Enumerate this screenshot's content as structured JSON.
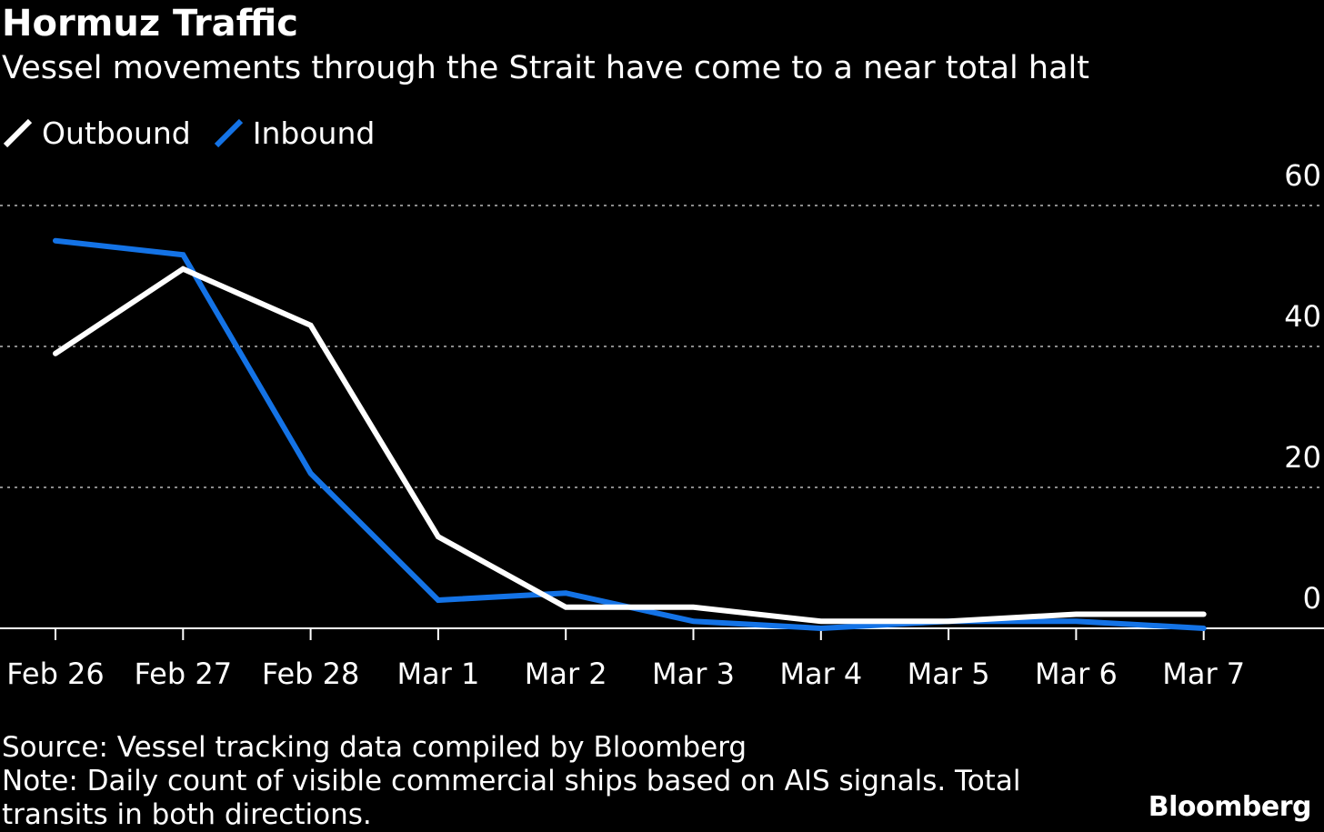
{
  "title": "Hormuz Traffic",
  "subtitle": "Vessel movements through the Strait have come to a near total halt",
  "source": "Source: Vessel tracking data compiled by Bloomberg",
  "note": "Note: Daily count of visible commercial ships based on AIS signals. Total transits in both directions.",
  "brand": "Bloomberg",
  "colors": {
    "background": "#000000",
    "outbound": "#ffffff",
    "inbound": "#1473e6",
    "grid": "#8c8c8c",
    "axis": "#ffffff"
  },
  "chart_data": {
    "type": "line",
    "title": "Hormuz Traffic",
    "subtitle": "Vessel movements through the Strait have come to a near total halt",
    "xlabel": "",
    "ylabel": "",
    "x": [
      "Feb 26",
      "Feb 27",
      "Feb 28",
      "Mar 1",
      "Mar 2",
      "Mar 3",
      "Mar 4",
      "Mar 5",
      "Mar 6",
      "Mar 7"
    ],
    "series": [
      {
        "name": "Outbound",
        "color": "#ffffff",
        "values": [
          39,
          51,
          43,
          13,
          3,
          3,
          1,
          1,
          2,
          2
        ]
      },
      {
        "name": "Inbound",
        "color": "#1473e6",
        "values": [
          55,
          53,
          22,
          4,
          5,
          1,
          0,
          1,
          1,
          0
        ]
      }
    ],
    "ylim": [
      0,
      60
    ],
    "yticks": [
      "0",
      "20",
      "40",
      "60"
    ],
    "grid": true,
    "legend": "top-left"
  }
}
